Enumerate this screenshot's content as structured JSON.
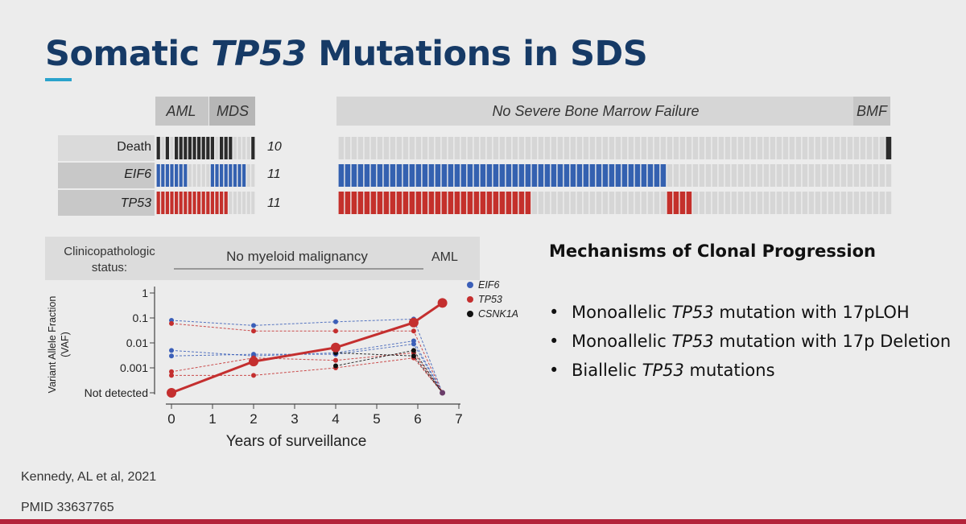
{
  "slide": {
    "title_part1": "Somatic",
    "title_italic": "TP53",
    "title_part2": "Mutations in SDS"
  },
  "oncoprint": {
    "headers_left": [
      "AML",
      "MDS"
    ],
    "header_main": "No Severe Bone Marrow Failure",
    "header_right": "BMF",
    "rows": [
      {
        "label": "Death",
        "count": "10"
      },
      {
        "label": "EIF6",
        "count": "11"
      },
      {
        "label": "TP53",
        "count": "11"
      }
    ],
    "colors": {
      "death": "#2b2b2b",
      "eif6": "#3461b0",
      "tp53": "#c4302b",
      "empty": "#d6d6d6"
    }
  },
  "chart_data": {
    "type": "line",
    "status_label_line1": "Clinicopathologic",
    "status_label_line2": "status:",
    "status_phase1": "No myeloid malignancy",
    "status_phase2": "AML",
    "xlabel": "Years of surveillance",
    "ylabel_line1": "Variant Allele Fraction",
    "ylabel_line2": "(VAF)",
    "x_ticks": [
      "0",
      "1",
      "2",
      "3",
      "4",
      "5",
      "6",
      "7"
    ],
    "y_ticks": [
      "1",
      "0.1",
      "0.01",
      "0.001",
      "Not detected"
    ],
    "xlim": [
      0,
      7
    ],
    "y_scale": "log",
    "legend": [
      {
        "name": "EIF6",
        "color": "#3b5fb8"
      },
      {
        "name": "TP53",
        "color": "#c42f2f"
      },
      {
        "name": "CSNK1A",
        "color": "#111111"
      }
    ],
    "series": [
      {
        "gene": "EIF6",
        "points": [
          [
            0,
            0.08
          ],
          [
            2,
            0.05
          ],
          [
            4,
            0.07
          ],
          [
            5.9,
            0.09
          ],
          [
            6.6,
            "Not detected"
          ]
        ]
      },
      {
        "gene": "EIF6",
        "points": [
          [
            0,
            0.005
          ],
          [
            2,
            0.003
          ],
          [
            4,
            0.004
          ],
          [
            5.9,
            0.012
          ],
          [
            6.6,
            "Not detected"
          ]
        ]
      },
      {
        "gene": "EIF6",
        "points": [
          [
            0,
            0.003
          ],
          [
            2,
            0.0035
          ],
          [
            4,
            0.0035
          ],
          [
            5.9,
            0.009
          ],
          [
            6.6,
            "Not detected"
          ]
        ]
      },
      {
        "gene": "TP53",
        "points": [
          [
            0,
            0.06
          ],
          [
            2,
            0.03
          ],
          [
            4,
            0.03
          ],
          [
            5.9,
            0.03
          ],
          [
            6.6,
            "Not detected"
          ]
        ]
      },
      {
        "gene": "TP53",
        "points": [
          [
            0,
            0.0007
          ],
          [
            2,
            0.0025
          ],
          [
            4,
            0.002
          ],
          [
            5.9,
            0.004
          ],
          [
            6.6,
            "Not detected"
          ]
        ]
      },
      {
        "gene": "TP53",
        "points": [
          [
            0,
            0.0005
          ],
          [
            2,
            0.0005
          ],
          [
            4,
            0.001
          ],
          [
            5.9,
            0.0025
          ],
          [
            6.6,
            "Not detected"
          ]
        ]
      },
      {
        "gene": "CSNK1A",
        "points": [
          [
            4,
            0.0012
          ],
          [
            5.9,
            0.005
          ],
          [
            6.6,
            "Not detected"
          ]
        ]
      },
      {
        "gene": "CSNK1A",
        "points": [
          [
            4,
            0.004
          ],
          [
            5.9,
            0.003
          ],
          [
            6.6,
            "Not detected"
          ]
        ]
      },
      {
        "gene": "TP53",
        "highlight": true,
        "points": [
          [
            0,
            "Not detected"
          ],
          [
            2,
            0.0018
          ],
          [
            4,
            0.0065
          ],
          [
            5.9,
            0.065
          ],
          [
            6.6,
            0.4
          ]
        ]
      }
    ]
  },
  "mechanisms": {
    "heading": "Mechanisms of Clonal Progression",
    "items": [
      {
        "pre": "Monoallelic ",
        "gene": "TP53",
        "post": " mutation with 17pLOH"
      },
      {
        "pre": "Monoallelic ",
        "gene": "TP53",
        "post": " mutation with 17p Deletion"
      },
      {
        "pre": "Biallelic ",
        "gene": "TP53",
        "post": " mutations"
      }
    ]
  },
  "citation": {
    "author": "Kennedy, AL et al, 2021",
    "pmid": "PMID 33637765"
  }
}
